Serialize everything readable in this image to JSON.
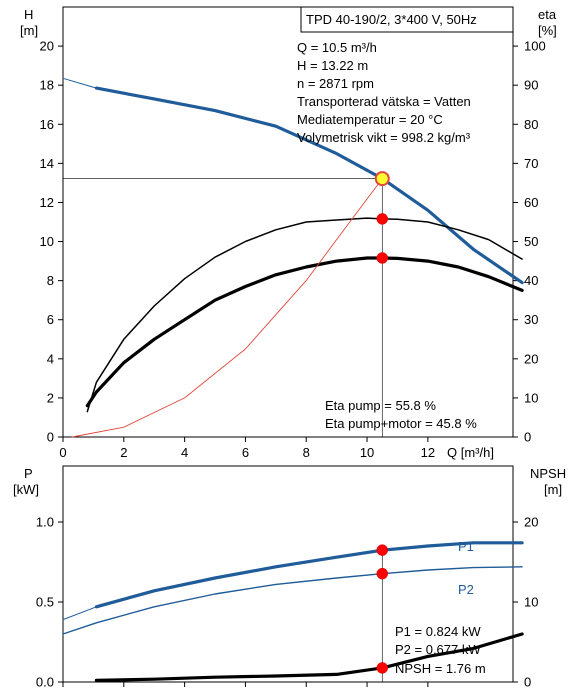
{
  "top": {
    "left_axis": {
      "name": "H",
      "unit": "[m]",
      "range": [
        0,
        22
      ],
      "ticks": [
        0,
        2,
        4,
        6,
        8,
        10,
        12,
        14,
        16,
        18,
        20
      ]
    },
    "right_axis": {
      "name": "eta",
      "unit": "[%]",
      "range": [
        0,
        110
      ],
      "ticks": [
        0,
        10,
        20,
        30,
        40,
        50,
        60,
        70,
        80,
        90,
        100
      ]
    },
    "x_axis": {
      "label": "Q [m³/h]",
      "range": [
        0,
        14.8
      ],
      "ticks": [
        0,
        2,
        4,
        6,
        8,
        10,
        12
      ]
    },
    "title_box": "TPD 40-190/2, 3*400 V, 50Hz",
    "info_lines": [
      "Q = 10.5 m³/h",
      "H = 13.22 m",
      "n = 2871 rpm",
      "Transporterad vätska = Vatten",
      "Mediatemperatur = 20 °C",
      "Volymetrisk vikt = 998.2 kg/m³"
    ],
    "eta_lines": [
      "Eta pump = 55.8 %",
      "Eta pump+motor = 45.8 %"
    ]
  },
  "bottom": {
    "left_axis": {
      "name": "P",
      "unit": "[kW]",
      "range": [
        0,
        1.35
      ],
      "ticks": [
        "0.0",
        "0.5",
        "1.0"
      ]
    },
    "right_axis": {
      "name": "NPSH",
      "unit": "[m]",
      "range": [
        0,
        27
      ],
      "ticks": [
        0,
        10,
        20
      ]
    },
    "series_labels": {
      "p1": "P1",
      "p2": "P2"
    },
    "info_lines": [
      "P1 = 0.824 kW",
      "P2 = 0.677 kW",
      "NPSH = 1.76 m"
    ]
  },
  "chart_data": [
    {
      "type": "line",
      "x_axis": "Q [m³/h]",
      "xlim": [
        0,
        14.8
      ],
      "ylim": [
        0,
        22
      ],
      "ylim_right": [
        0,
        110
      ],
      "duty_point": {
        "Q": 10.5,
        "H": 13.22,
        "eta_pump": 55.8,
        "eta_pump_motor": 45.8
      },
      "series": [
        {
          "name": "H",
          "axis": "left",
          "style": "thick-blue-solid",
          "x": [
            1.1,
            3,
            5,
            7,
            9,
            10.5,
            12,
            13.5,
            15.1
          ],
          "y": [
            17.85,
            17.3,
            16.7,
            15.9,
            14.5,
            13.22,
            11.6,
            9.6,
            7.9
          ]
        },
        {
          "name": "H",
          "axis": "left",
          "style": "thin-blue-extension",
          "x": [
            0,
            1.1
          ],
          "y": [
            18.35,
            17.85
          ]
        },
        {
          "name": "eta pump",
          "axis": "right",
          "style": "thin-black",
          "x": [
            0.8,
            1.1,
            2,
            3,
            4,
            5,
            6,
            7,
            8,
            9,
            10,
            10.5,
            11,
            12,
            13,
            14,
            15.1
          ],
          "y": [
            6.5,
            14,
            25,
            33.5,
            40.5,
            46,
            50,
            53,
            55,
            55.5,
            56,
            55.8,
            55.7,
            55,
            53,
            50.5,
            45.5
          ]
        },
        {
          "name": "eta pump+motor",
          "axis": "right",
          "style": "thick-black",
          "x": [
            0.8,
            1.1,
            2,
            3,
            4,
            5,
            6,
            7,
            8,
            9,
            10,
            10.5,
            11,
            12,
            13,
            14,
            15.1
          ],
          "y": [
            8,
            11.5,
            19,
            25,
            30,
            35,
            38.5,
            41.5,
            43.5,
            45,
            45.8,
            45.8,
            45.7,
            45,
            43.5,
            41,
            37.5
          ]
        },
        {
          "name": "system curve",
          "axis": "left",
          "style": "thin-red",
          "x": [
            0.3,
            2,
            4,
            6,
            8,
            9,
            10.5
          ],
          "y": [
            0,
            0.5,
            2,
            4.5,
            8,
            10.1,
            13.22
          ]
        }
      ]
    },
    {
      "type": "line",
      "x_axis": "Q [m³/h]",
      "xlim": [
        0,
        14.8
      ],
      "ylim": [
        0,
        1.35
      ],
      "ylim_right": [
        0,
        27
      ],
      "duty_point": {
        "Q": 10.5,
        "P1": 0.824,
        "P2": 0.677,
        "NPSH": 1.76
      },
      "series": [
        {
          "name": "P1",
          "axis": "left",
          "style": "thick-blue",
          "x": [
            1.1,
            3,
            5,
            7,
            9,
            10.5,
            12,
            13.5,
            15.1
          ],
          "y": [
            0.47,
            0.57,
            0.65,
            0.72,
            0.78,
            0.824,
            0.85,
            0.87,
            0.87
          ]
        },
        {
          "name": "P1",
          "axis": "left",
          "style": "thin-blue-extension",
          "x": [
            0,
            1.1
          ],
          "y": [
            0.39,
            0.47
          ]
        },
        {
          "name": "P2",
          "axis": "left",
          "style": "thin-blue",
          "x": [
            0,
            1.1,
            3,
            5,
            7,
            9,
            10.5,
            12,
            13.5,
            15.1
          ],
          "y": [
            0.3,
            0.37,
            0.47,
            0.55,
            0.61,
            0.65,
            0.677,
            0.7,
            0.715,
            0.72
          ]
        },
        {
          "name": "NPSH",
          "axis": "right",
          "style": "thick-black",
          "x": [
            1.1,
            3,
            5,
            7,
            9,
            10.5,
            12,
            13.5,
            15.1
          ],
          "y": [
            0.2,
            0.35,
            0.6,
            0.75,
            0.95,
            1.76,
            3.2,
            4.2,
            6
          ]
        }
      ]
    }
  ]
}
